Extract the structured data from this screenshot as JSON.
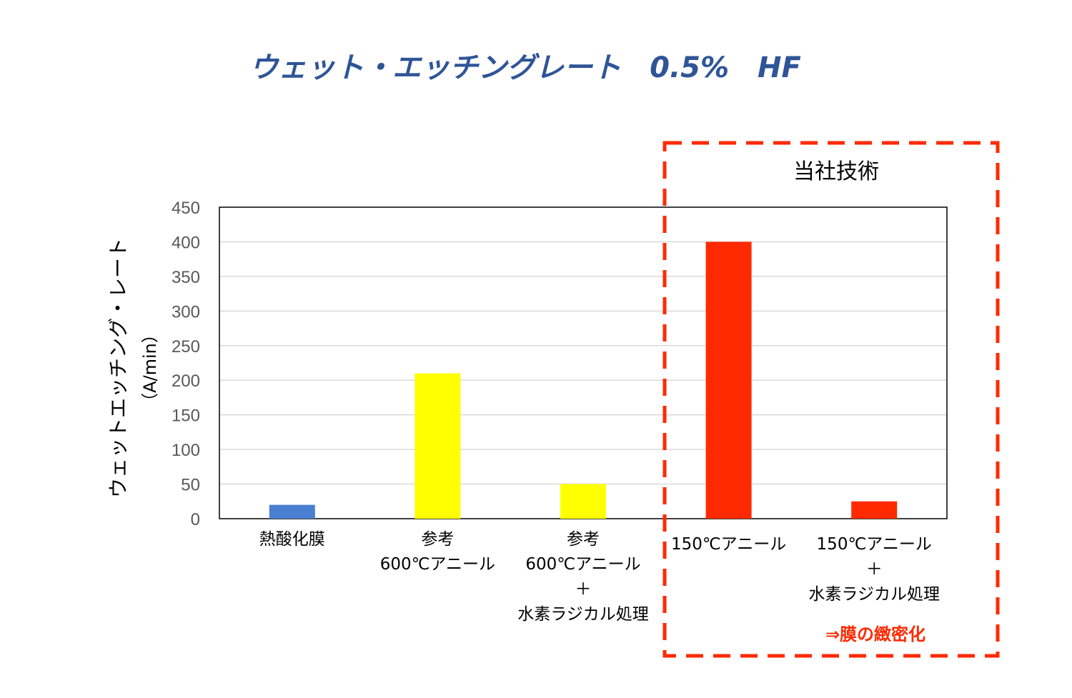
{
  "title": "ウェット・エッチングレート　0.5%　HF",
  "highlight": {
    "title": "当社技術",
    "note": "⇒膜の緻密化",
    "color": "#ff2a00"
  },
  "colors": {
    "title": "#2f5597",
    "gridline": "#d9d9d9",
    "axis": "#000000"
  },
  "chart_data": {
    "type": "bar",
    "ylabel": "ウェットエッチング・レート",
    "yunit": "（A/min）",
    "ylim": [
      0,
      450
    ],
    "yticks": [
      0,
      50,
      100,
      150,
      200,
      250,
      300,
      350,
      400,
      450
    ],
    "grid": true,
    "categories": [
      {
        "lines": [
          "熱酸化膜"
        ],
        "value": 20,
        "color": "#4a7fd1"
      },
      {
        "lines": [
          "参考",
          "600℃アニール"
        ],
        "value": 210,
        "color": "#ffff00"
      },
      {
        "lines": [
          "参考",
          "600℃アニール",
          "＋",
          "水素ラジカル処理"
        ],
        "value": 50,
        "color": "#ffff00"
      },
      {
        "lines": [
          "150℃アニール"
        ],
        "value": 400,
        "color": "#ff2a00"
      },
      {
        "lines": [
          "150℃アニール",
          "＋",
          "水素ラジカル処理"
        ],
        "value": 25,
        "color": "#ff2a00"
      }
    ]
  }
}
